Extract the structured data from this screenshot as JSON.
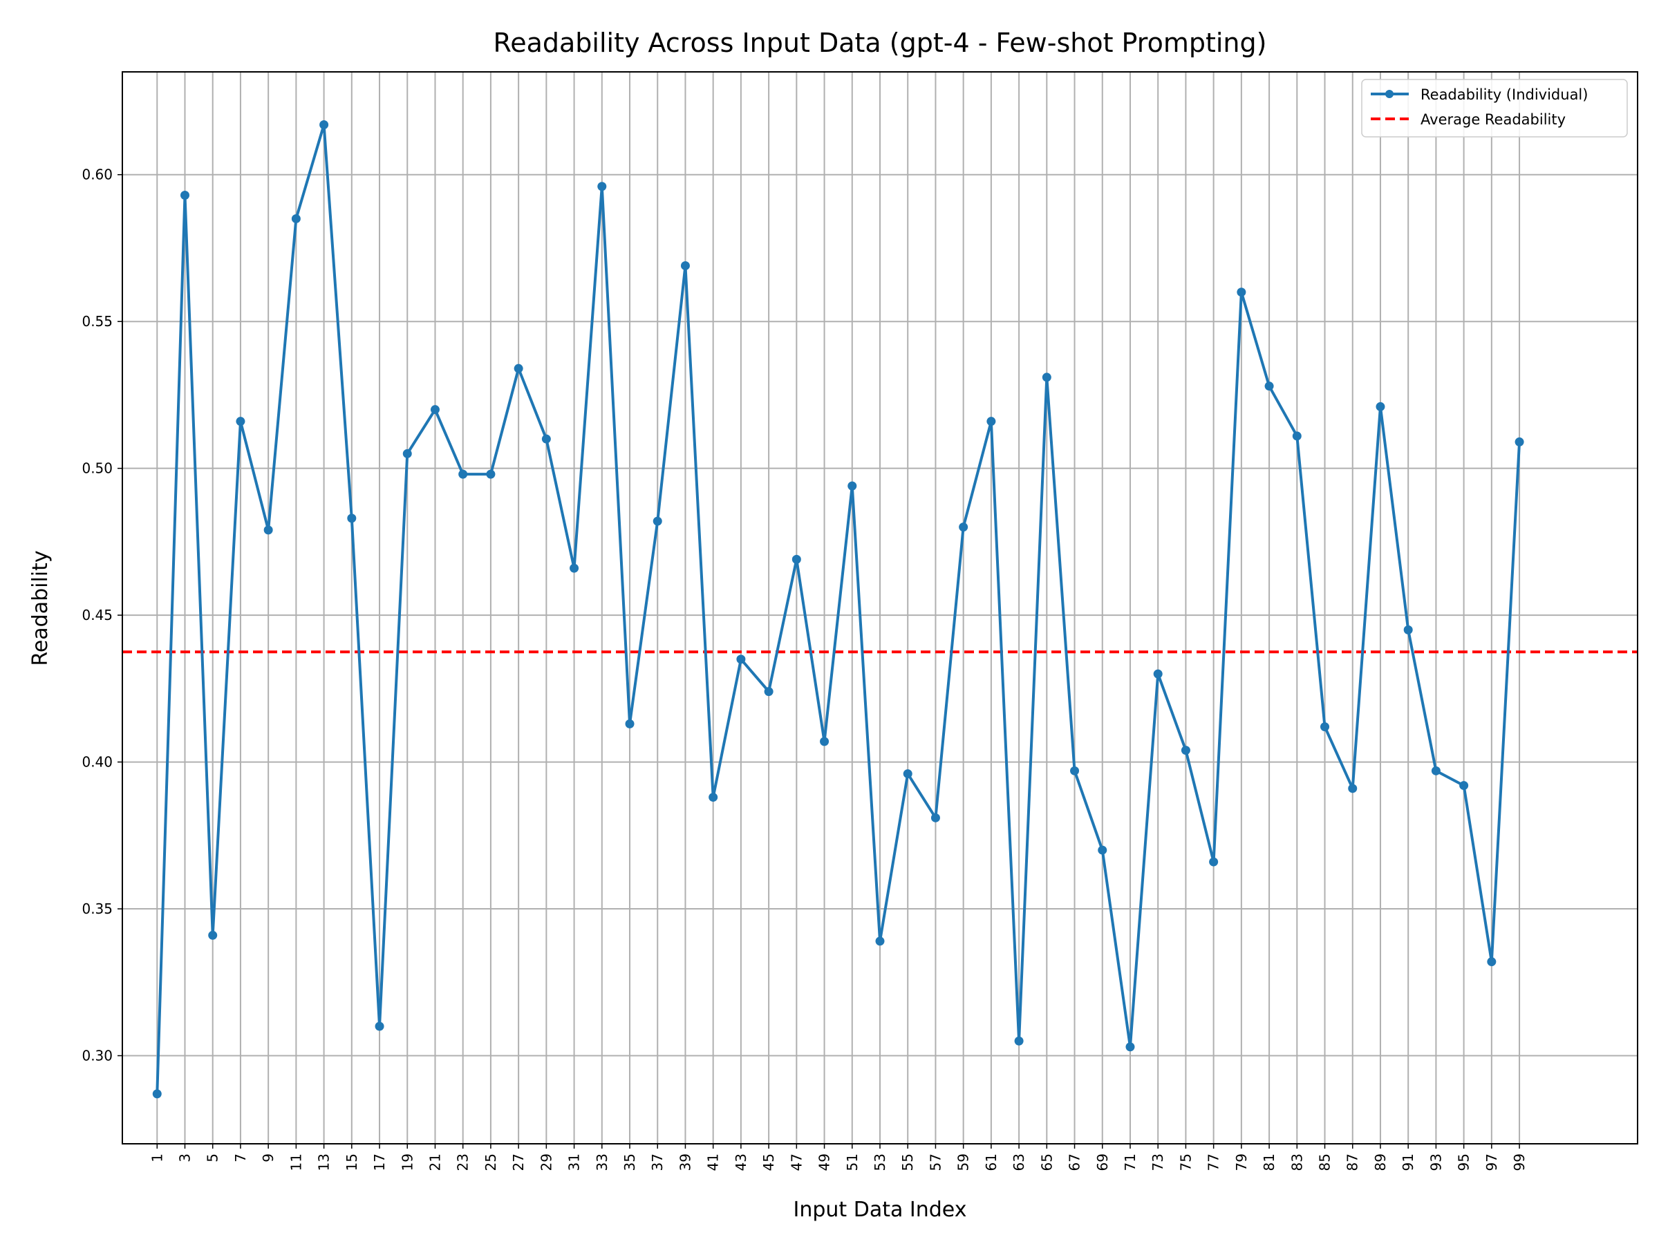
{
  "chart_data": {
    "type": "line",
    "title": "Readability Across Input Data (gpt-4 - Few-shot Prompting)",
    "xlabel": "Input Data Index",
    "ylabel": "Readability",
    "xlim": [
      -1.5,
      107.5
    ],
    "ylim": [
      0.27,
      0.635
    ],
    "grid": true,
    "legend_placement": "top-right",
    "x_ticks": [
      1,
      3,
      5,
      7,
      9,
      11,
      13,
      15,
      17,
      19,
      21,
      23,
      25,
      27,
      29,
      31,
      33,
      35,
      37,
      39,
      41,
      43,
      45,
      47,
      49,
      51,
      53,
      55,
      57,
      59,
      61,
      63,
      65,
      67,
      69,
      71,
      73,
      75,
      77,
      79,
      81,
      83,
      85,
      87,
      89,
      91,
      93,
      95,
      97,
      99
    ],
    "y_ticks": [
      0.3,
      0.35,
      0.4,
      0.45,
      0.5,
      0.55,
      0.6
    ],
    "y_tick_labels": [
      "0.30",
      "0.35",
      "0.40",
      "0.45",
      "0.50",
      "0.55",
      "0.60"
    ],
    "series": [
      {
        "name": "Readability (Individual)",
        "color": "#1f77b4",
        "style": "line-with-markers",
        "x": [
          1,
          3,
          5,
          7,
          9,
          11,
          13,
          15,
          17,
          19,
          21,
          23,
          25,
          27,
          29,
          31,
          33,
          35,
          37,
          39,
          41,
          43,
          45,
          47,
          49,
          51,
          53,
          55,
          57,
          59,
          61,
          63,
          65,
          67,
          69,
          71,
          73,
          75,
          77,
          79,
          81,
          83,
          85,
          87,
          89,
          91,
          93,
          95,
          97,
          99
        ],
        "values": [
          0.287,
          0.593,
          0.341,
          0.516,
          0.479,
          0.585,
          0.617,
          0.483,
          0.31,
          0.505,
          0.52,
          0.498,
          0.498,
          0.534,
          0.51,
          0.466,
          0.596,
          0.413,
          0.482,
          0.569,
          0.388,
          0.435,
          0.424,
          0.469,
          0.407,
          0.494,
          0.339,
          0.396,
          0.381,
          0.48,
          0.516,
          0.305,
          0.531,
          0.397,
          0.37,
          0.303,
          0.43,
          0.404,
          0.366,
          0.56,
          0.528,
          0.511,
          0.412,
          0.391,
          0.521,
          0.445,
          0.397,
          0.392,
          0.332,
          0.509
        ]
      },
      {
        "name": "Average Readability",
        "color": "#ff0000",
        "style": "dashed-horizontal",
        "value": 0.4375
      }
    ]
  }
}
